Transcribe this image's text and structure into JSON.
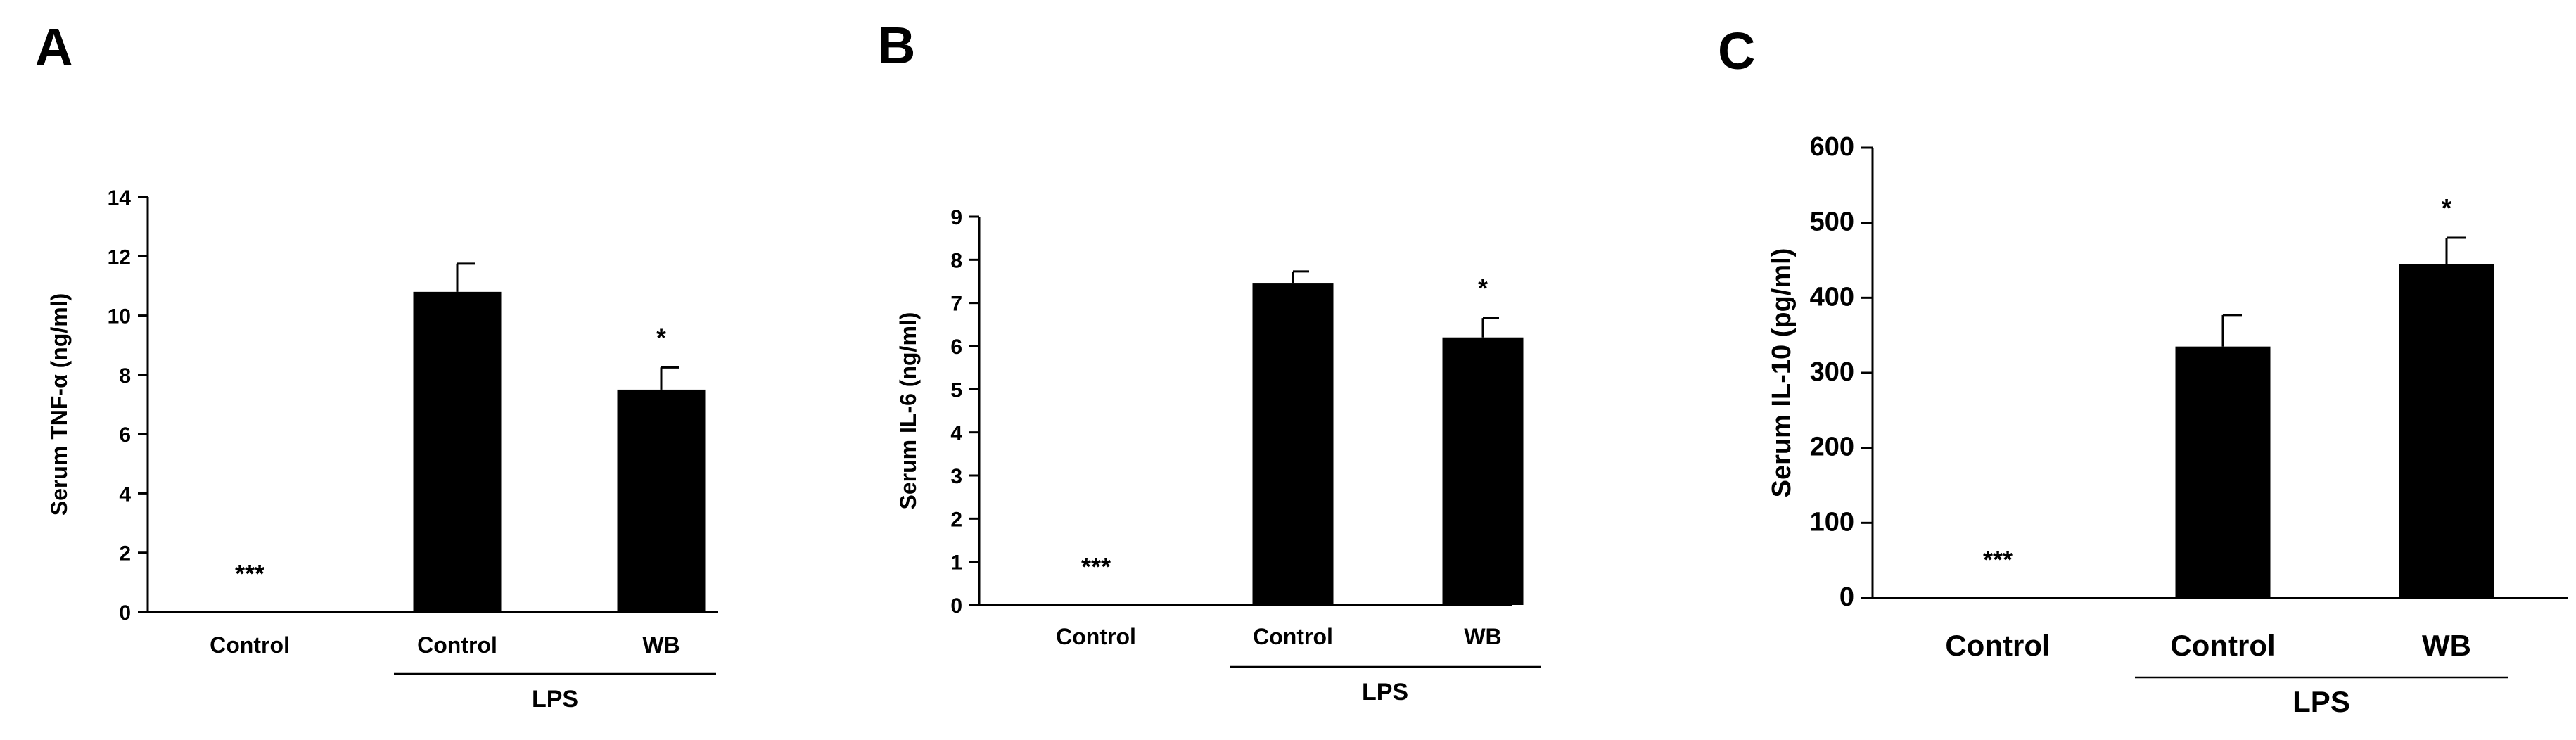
{
  "chart_data": [
    {
      "type": "bar",
      "panel": "A",
      "ylabel": "Serum TNF-α (ng/ml)",
      "ylim": [
        0,
        14
      ],
      "yticks": [
        0,
        2,
        4,
        6,
        8,
        10,
        12,
        14
      ],
      "categories": [
        "Control",
        "Control",
        "WB"
      ],
      "group_label": "LPS",
      "values": [
        0,
        10.8,
        7.5
      ],
      "errors": [
        0,
        0.95,
        0.75
      ],
      "annotations": [
        "***",
        "",
        "*"
      ]
    },
    {
      "type": "bar",
      "panel": "B",
      "ylabel": "Serum IL-6 (ng/ml)",
      "ylim": [
        0,
        9
      ],
      "yticks": [
        0,
        1,
        2,
        3,
        4,
        5,
        6,
        7,
        8,
        9
      ],
      "categories": [
        "Control",
        "Control",
        "WB"
      ],
      "group_label": "LPS",
      "values": [
        0,
        7.45,
        6.2
      ],
      "errors": [
        0,
        0.28,
        0.45
      ],
      "annotations": [
        "***",
        "",
        "*"
      ]
    },
    {
      "type": "bar",
      "panel": "C",
      "ylabel": "Serum IL-10 (pg/ml)",
      "ylim": [
        0,
        600
      ],
      "yticks": [
        0,
        100,
        200,
        300,
        400,
        500,
        600
      ],
      "categories": [
        "Control",
        "Control",
        "WB"
      ],
      "group_label": "LPS",
      "values": [
        0,
        335,
        445
      ],
      "errors": [
        0,
        42,
        35
      ],
      "annotations": [
        "***",
        "",
        "*"
      ]
    }
  ]
}
